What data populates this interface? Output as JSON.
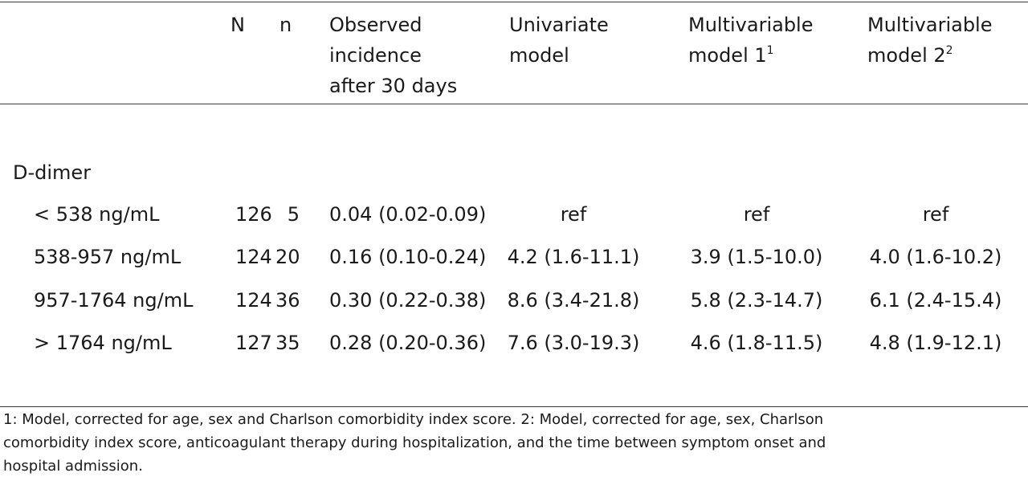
{
  "table": {
    "headers": {
      "N": "N",
      "n": "n",
      "observed": "Observed\nincidence\nafter 30 days",
      "univariate": "Univariate\nmodel",
      "mv1": "Multivariable\nmodel 1",
      "mv1_sup": "1",
      "mv2": "Multivariable\nmodel 2",
      "mv2_sup": "2"
    },
    "group_label": "D-dimer",
    "rows": [
      {
        "label": "< 538 ng/mL",
        "N": "126",
        "n": "5",
        "observed": "0.04 (0.02-0.09)",
        "univariate": "ref",
        "mv1": "ref",
        "mv2": "ref"
      },
      {
        "label": "538-957 ng/mL",
        "N": "124",
        "n": "20",
        "observed": "0.16 (0.10-0.24)",
        "univariate": "4.2 (1.6-11.1)",
        "mv1": "3.9 (1.5-10.0)",
        "mv2": "4.0 (1.6-10.2)"
      },
      {
        "label": "957-1764 ng/mL",
        "N": "124",
        "n": "36",
        "observed": "0.30 (0.22-0.38)",
        "univariate": "8.6 (3.4-21.8)",
        "mv1": "5.8 (2.3-14.7)",
        "mv2": "6.1 (2.4-15.4)"
      },
      {
        "label": "> 1764 ng/mL",
        "N": "127",
        "n": "35",
        "observed": "0.28 (0.20-0.36)",
        "univariate": "7.6 (3.0-19.3)",
        "mv1": "4.6 (1.8-11.5)",
        "mv2": "4.8 (1.9-12.1)"
      }
    ]
  },
  "footnote": "1: Model, corrected for age, sex and Charlson comorbidity index score. 2: Model, corrected for age, sex, Charlson\ncomorbidity index score, anticoagulant therapy during hospitalization, and the time between symptom onset and\nhospital admission."
}
